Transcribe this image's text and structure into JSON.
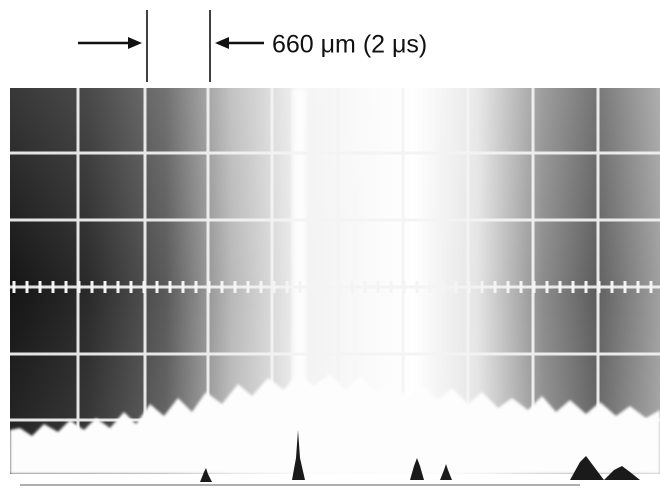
{
  "annotation": "660 μm (2 μs)"
}
